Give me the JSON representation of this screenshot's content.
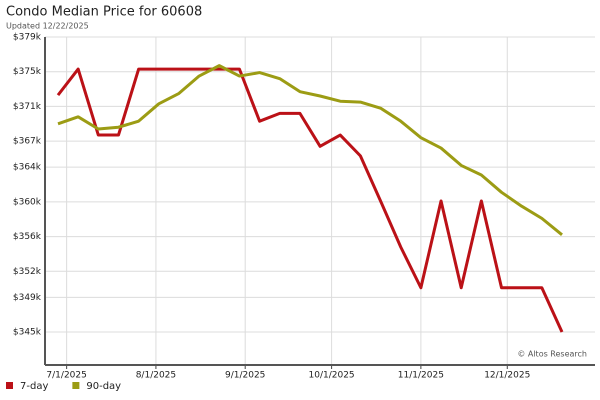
{
  "chart_data": {
    "type": "line",
    "title": "Condo Median Price for 60608",
    "subtitle": "Updated 12/22/2025",
    "annotation": "© Altos Research",
    "x": [
      "6/28/2025",
      "7/5/2025",
      "7/12/2025",
      "7/19/2025",
      "7/26/2025",
      "8/2/2025",
      "8/9/2025",
      "8/16/2025",
      "8/23/2025",
      "8/30/2025",
      "9/6/2025",
      "9/13/2025",
      "9/20/2025",
      "9/27/2025",
      "10/4/2025",
      "10/11/2025",
      "10/18/2025",
      "10/25/2025",
      "11/1/2025",
      "11/8/2025",
      "11/15/2025",
      "11/22/2025",
      "11/29/2025",
      "12/6/2025",
      "12/13/2025",
      "12/20/2025"
    ],
    "series": [
      {
        "name": "7-day",
        "color": "#bb1117",
        "values": [
          372300,
          375300,
          367700,
          367700,
          375300,
          375300,
          375300,
          375300,
          375300,
          375300,
          369300,
          370200,
          370200,
          366400,
          367700,
          365300,
          360100,
          354800,
          350100,
          360100,
          350100,
          360100,
          350100,
          350100,
          350100,
          345000
        ]
      },
      {
        "name": "90-day",
        "color": "#9c9c14",
        "values": [
          369000,
          369800,
          368400,
          368600,
          369300,
          371300,
          372500,
          374500,
          375700,
          374500,
          374900,
          374200,
          372700,
          372200,
          371600,
          371500,
          370800,
          369300,
          367400,
          366200,
          364200,
          363100,
          361100,
          359500,
          358100,
          356200
        ]
      }
    ],
    "ylim": [
      341200,
      379000
    ],
    "yticks": [
      {
        "value": 345000,
        "label": "$345k"
      },
      {
        "value": 349000,
        "label": "$349k"
      },
      {
        "value": 352000,
        "label": "$352k"
      },
      {
        "value": 356000,
        "label": "$356k"
      },
      {
        "value": 360000,
        "label": "$360k"
      },
      {
        "value": 364000,
        "label": "$364k"
      },
      {
        "value": 367000,
        "label": "$367k"
      },
      {
        "value": 371000,
        "label": "$371k"
      },
      {
        "value": 375000,
        "label": "$375k"
      },
      {
        "value": 379000,
        "label": "$379k"
      }
    ],
    "xticks": [
      "7/1/2025",
      "8/1/2025",
      "9/1/2025",
      "10/1/2025",
      "11/1/2025",
      "12/1/2025"
    ],
    "grid": true
  }
}
